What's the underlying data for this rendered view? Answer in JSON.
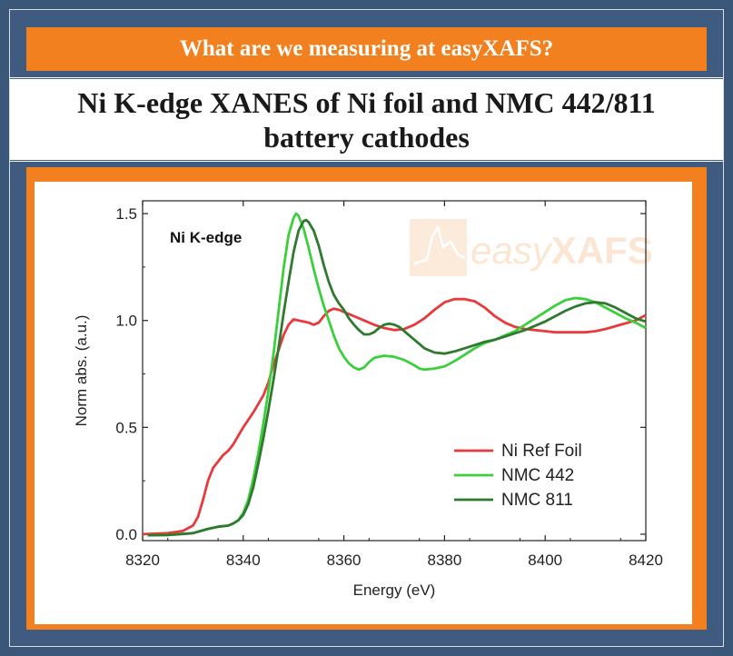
{
  "header": {
    "banner_text": "What are we measuring at easyXAFS?",
    "title": "Ni K-edge XANES of Ni foil and NMC 442/811 battery cathodes"
  },
  "colors": {
    "background": "#3f5c80",
    "accent": "#f3801e"
  },
  "chart_data": {
    "type": "line",
    "title": "",
    "annotation": "Ni K-edge",
    "watermark": "easyXAFS",
    "xlabel": "Energy (eV)",
    "ylabel": "Norm abs. (a.u.)",
    "xlim": [
      8320,
      8420
    ],
    "ylim": [
      -0.03,
      1.56
    ],
    "xticks": [
      8320,
      8340,
      8360,
      8380,
      8400,
      8420
    ],
    "yticks": [
      0.0,
      0.5,
      1.0,
      1.5
    ],
    "xtick_labels": [
      "8320",
      "8340",
      "8360",
      "8380",
      "8400",
      "8420"
    ],
    "ytick_labels": [
      "0.0",
      "0.5",
      "1.0",
      "1.5"
    ],
    "grid": false,
    "legend_position": "lower-right",
    "series": [
      {
        "name": "Ni Ref Foil",
        "color": "#e8393c",
        "points": [
          [
            8320,
            0.0
          ],
          [
            8325,
            0.005
          ],
          [
            8328,
            0.015
          ],
          [
            8330,
            0.04
          ],
          [
            8331,
            0.08
          ],
          [
            8332,
            0.16
          ],
          [
            8333,
            0.25
          ],
          [
            8334,
            0.31
          ],
          [
            8335,
            0.34
          ],
          [
            8336,
            0.37
          ],
          [
            8337,
            0.39
          ],
          [
            8338,
            0.42
          ],
          [
            8339,
            0.46
          ],
          [
            8340,
            0.5
          ],
          [
            8342,
            0.57
          ],
          [
            8344,
            0.65
          ],
          [
            8345,
            0.71
          ],
          [
            8346,
            0.79
          ],
          [
            8347,
            0.86
          ],
          [
            8348,
            0.93
          ],
          [
            8349,
            0.98
          ],
          [
            8350,
            1.005
          ],
          [
            8351,
            1.0
          ],
          [
            8352,
            0.995
          ],
          [
            8353,
            0.99
          ],
          [
            8354,
            0.98
          ],
          [
            8355,
            0.99
          ],
          [
            8356,
            1.02
          ],
          [
            8357,
            1.045
          ],
          [
            8358,
            1.055
          ],
          [
            8359,
            1.05
          ],
          [
            8360,
            1.04
          ],
          [
            8362,
            1.02
          ],
          [
            8364,
            1.0
          ],
          [
            8366,
            0.98
          ],
          [
            8368,
            0.965
          ],
          [
            8370,
            0.955
          ],
          [
            8372,
            0.96
          ],
          [
            8374,
            0.98
          ],
          [
            8376,
            1.01
          ],
          [
            8378,
            1.05
          ],
          [
            8380,
            1.085
          ],
          [
            8382,
            1.1
          ],
          [
            8384,
            1.1
          ],
          [
            8386,
            1.09
          ],
          [
            8388,
            1.06
          ],
          [
            8390,
            1.02
          ],
          [
            8392,
            0.99
          ],
          [
            8394,
            0.97
          ],
          [
            8396,
            0.96
          ],
          [
            8398,
            0.955
          ],
          [
            8400,
            0.95
          ],
          [
            8402,
            0.945
          ],
          [
            8405,
            0.945
          ],
          [
            8408,
            0.945
          ],
          [
            8410,
            0.95
          ],
          [
            8412,
            0.96
          ],
          [
            8415,
            0.98
          ],
          [
            8418,
            1.0
          ],
          [
            8420,
            1.025
          ]
        ]
      },
      {
        "name": "NMC 442",
        "color": "#3ccf3c",
        "points": [
          [
            8321,
            -0.005
          ],
          [
            8325,
            -0.004
          ],
          [
            8330,
            0.005
          ],
          [
            8333,
            0.025
          ],
          [
            8335,
            0.035
          ],
          [
            8337,
            0.04
          ],
          [
            8338,
            0.05
          ],
          [
            8339,
            0.065
          ],
          [
            8340,
            0.1
          ],
          [
            8341,
            0.16
          ],
          [
            8342,
            0.26
          ],
          [
            8343,
            0.38
          ],
          [
            8344,
            0.52
          ],
          [
            8345,
            0.67
          ],
          [
            8346,
            0.84
          ],
          [
            8347,
            1.04
          ],
          [
            8348,
            1.24
          ],
          [
            8349,
            1.4
          ],
          [
            8350,
            1.48
          ],
          [
            8350.5,
            1.5
          ],
          [
            8351,
            1.49
          ],
          [
            8352,
            1.43
          ],
          [
            8353,
            1.34
          ],
          [
            8354,
            1.24
          ],
          [
            8355,
            1.15
          ],
          [
            8356,
            1.07
          ],
          [
            8357,
            1.0
          ],
          [
            8358,
            0.93
          ],
          [
            8359,
            0.87
          ],
          [
            8360,
            0.83
          ],
          [
            8361,
            0.8
          ],
          [
            8362,
            0.78
          ],
          [
            8363,
            0.77
          ],
          [
            8364,
            0.78
          ],
          [
            8365,
            0.805
          ],
          [
            8366,
            0.825
          ],
          [
            8368,
            0.835
          ],
          [
            8370,
            0.83
          ],
          [
            8372,
            0.815
          ],
          [
            8374,
            0.79
          ],
          [
            8375,
            0.775
          ],
          [
            8376,
            0.77
          ],
          [
            8378,
            0.775
          ],
          [
            8380,
            0.785
          ],
          [
            8382,
            0.81
          ],
          [
            8384,
            0.84
          ],
          [
            8386,
            0.87
          ],
          [
            8388,
            0.895
          ],
          [
            8390,
            0.91
          ],
          [
            8392,
            0.93
          ],
          [
            8394,
            0.95
          ],
          [
            8396,
            0.98
          ],
          [
            8398,
            1.01
          ],
          [
            8400,
            1.04
          ],
          [
            8402,
            1.07
          ],
          [
            8404,
            1.095
          ],
          [
            8406,
            1.105
          ],
          [
            8408,
            1.1
          ],
          [
            8410,
            1.085
          ],
          [
            8412,
            1.06
          ],
          [
            8414,
            1.035
          ],
          [
            8416,
            1.01
          ],
          [
            8418,
            0.99
          ],
          [
            8420,
            0.965
          ]
        ]
      },
      {
        "name": "NMC 811",
        "color": "#2f7a2f",
        "points": [
          [
            8321,
            -0.005
          ],
          [
            8325,
            -0.004
          ],
          [
            8330,
            0.005
          ],
          [
            8333,
            0.025
          ],
          [
            8335,
            0.035
          ],
          [
            8337,
            0.04
          ],
          [
            8338,
            0.05
          ],
          [
            8339,
            0.065
          ],
          [
            8340,
            0.09
          ],
          [
            8341,
            0.14
          ],
          [
            8342,
            0.22
          ],
          [
            8343,
            0.33
          ],
          [
            8344,
            0.45
          ],
          [
            8345,
            0.58
          ],
          [
            8346,
            0.72
          ],
          [
            8347,
            0.87
          ],
          [
            8348,
            1.03
          ],
          [
            8349,
            1.18
          ],
          [
            8350,
            1.32
          ],
          [
            8351,
            1.42
          ],
          [
            8352,
            1.465
          ],
          [
            8352.5,
            1.47
          ],
          [
            8353,
            1.46
          ],
          [
            8354,
            1.42
          ],
          [
            8355,
            1.35
          ],
          [
            8356,
            1.26
          ],
          [
            8357,
            1.18
          ],
          [
            8358,
            1.12
          ],
          [
            8359,
            1.08
          ],
          [
            8360,
            1.05
          ],
          [
            8361,
            1.01
          ],
          [
            8362,
            0.98
          ],
          [
            8363,
            0.955
          ],
          [
            8364,
            0.935
          ],
          [
            8365,
            0.935
          ],
          [
            8366,
            0.945
          ],
          [
            8367,
            0.965
          ],
          [
            8368,
            0.98
          ],
          [
            8369,
            0.985
          ],
          [
            8370,
            0.98
          ],
          [
            8371,
            0.97
          ],
          [
            8372,
            0.95
          ],
          [
            8374,
            0.91
          ],
          [
            8376,
            0.87
          ],
          [
            8378,
            0.85
          ],
          [
            8380,
            0.845
          ],
          [
            8382,
            0.855
          ],
          [
            8384,
            0.87
          ],
          [
            8386,
            0.885
          ],
          [
            8388,
            0.9
          ],
          [
            8390,
            0.91
          ],
          [
            8392,
            0.925
          ],
          [
            8394,
            0.94
          ],
          [
            8396,
            0.955
          ],
          [
            8398,
            0.975
          ],
          [
            8400,
            0.995
          ],
          [
            8402,
            1.02
          ],
          [
            8404,
            1.045
          ],
          [
            8406,
            1.065
          ],
          [
            8408,
            1.08
          ],
          [
            8410,
            1.085
          ],
          [
            8412,
            1.08
          ],
          [
            8414,
            1.06
          ],
          [
            8416,
            1.035
          ],
          [
            8418,
            1.01
          ],
          [
            8420,
            0.995
          ]
        ]
      }
    ]
  }
}
